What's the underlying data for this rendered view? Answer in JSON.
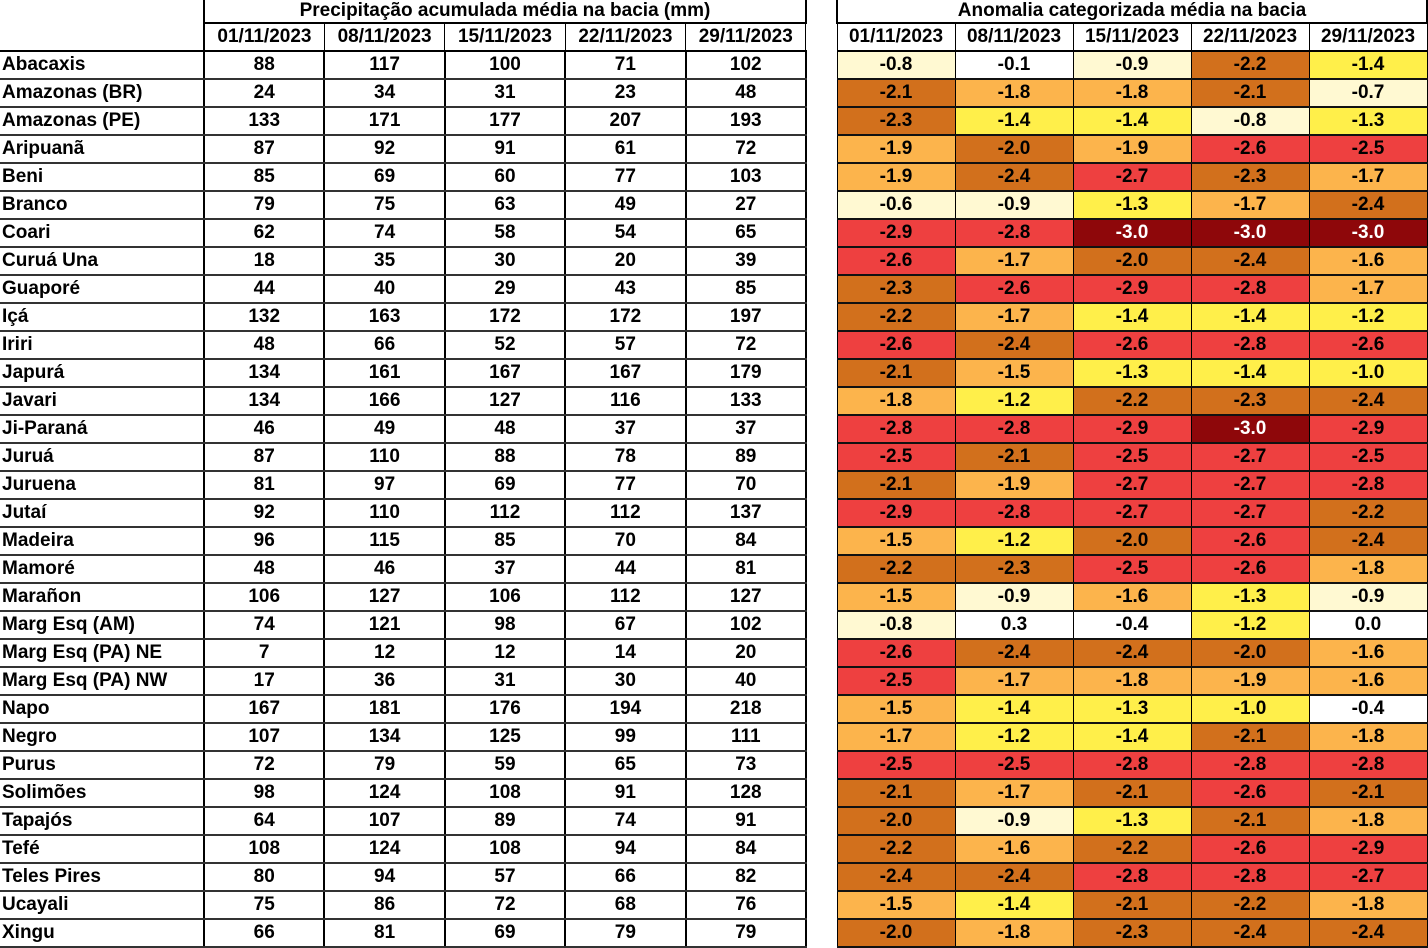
{
  "precipitation_table": {
    "title": "Precipitação acumulada média na bacia (mm)",
    "dates": [
      "01/11/2023",
      "08/11/2023",
      "15/11/2023",
      "22/11/2023",
      "29/11/2023"
    ]
  },
  "anomaly_table": {
    "title": "Anomalia categorizada média na bacia",
    "dates": [
      "01/11/2023",
      "08/11/2023",
      "15/11/2023",
      "22/11/2023",
      "29/11/2023"
    ]
  },
  "anomaly_colors": {
    "normal": "#ffffff",
    "weak": "#fff9d2",
    "moderate": "#ffef4a",
    "severe": "#fcb44c",
    "extreme": "#d2701c",
    "exceptional": "#ee4040",
    "max": "#8e070a"
  },
  "rows": [
    {
      "basin": "Abacaxis",
      "precip": [
        "88",
        "117",
        "100",
        "71",
        "102"
      ],
      "anomaly": [
        "-0.8",
        "-0.1",
        "-0.9",
        "-2.2",
        "-1.4"
      ]
    },
    {
      "basin": "Amazonas (BR)",
      "precip": [
        "24",
        "34",
        "31",
        "23",
        "48"
      ],
      "anomaly": [
        "-2.1",
        "-1.8",
        "-1.8",
        "-2.1",
        "-0.7"
      ]
    },
    {
      "basin": "Amazonas (PE)",
      "precip": [
        "133",
        "171",
        "177",
        "207",
        "193"
      ],
      "anomaly": [
        "-2.3",
        "-1.4",
        "-1.4",
        "-0.8",
        "-1.3"
      ]
    },
    {
      "basin": "Aripuanã",
      "precip": [
        "87",
        "92",
        "91",
        "61",
        "72"
      ],
      "anomaly": [
        "-1.9",
        "-2.0",
        "-1.9",
        "-2.6",
        "-2.5"
      ]
    },
    {
      "basin": "Beni",
      "precip": [
        "85",
        "69",
        "60",
        "77",
        "103"
      ],
      "anomaly": [
        "-1.9",
        "-2.4",
        "-2.7",
        "-2.3",
        "-1.7"
      ]
    },
    {
      "basin": "Branco",
      "precip": [
        "79",
        "75",
        "63",
        "49",
        "27"
      ],
      "anomaly": [
        "-0.6",
        "-0.9",
        "-1.3",
        "-1.7",
        "-2.4"
      ]
    },
    {
      "basin": "Coari",
      "precip": [
        "62",
        "74",
        "58",
        "54",
        "65"
      ],
      "anomaly": [
        "-2.9",
        "-2.8",
        "-3.0",
        "-3.0",
        "-3.0"
      ]
    },
    {
      "basin": "Curuá Una",
      "precip": [
        "18",
        "35",
        "30",
        "20",
        "39"
      ],
      "anomaly": [
        "-2.6",
        "-1.7",
        "-2.0",
        "-2.4",
        "-1.6"
      ]
    },
    {
      "basin": "Guaporé",
      "precip": [
        "44",
        "40",
        "29",
        "43",
        "85"
      ],
      "anomaly": [
        "-2.3",
        "-2.6",
        "-2.9",
        "-2.8",
        "-1.7"
      ]
    },
    {
      "basin": "Içá",
      "precip": [
        "132",
        "163",
        "172",
        "172",
        "197"
      ],
      "anomaly": [
        "-2.2",
        "-1.7",
        "-1.4",
        "-1.4",
        "-1.2"
      ]
    },
    {
      "basin": "Iriri",
      "precip": [
        "48",
        "66",
        "52",
        "57",
        "72"
      ],
      "anomaly": [
        "-2.6",
        "-2.4",
        "-2.6",
        "-2.8",
        "-2.6"
      ]
    },
    {
      "basin": "Japurá",
      "precip": [
        "134",
        "161",
        "167",
        "167",
        "179"
      ],
      "anomaly": [
        "-2.1",
        "-1.5",
        "-1.3",
        "-1.4",
        "-1.0"
      ]
    },
    {
      "basin": "Javari",
      "precip": [
        "134",
        "166",
        "127",
        "116",
        "133"
      ],
      "anomaly": [
        "-1.8",
        "-1.2",
        "-2.2",
        "-2.3",
        "-2.4"
      ]
    },
    {
      "basin": "Ji-Paraná",
      "precip": [
        "46",
        "49",
        "48",
        "37",
        "37"
      ],
      "anomaly": [
        "-2.8",
        "-2.8",
        "-2.9",
        "-3.0",
        "-2.9"
      ]
    },
    {
      "basin": "Juruá",
      "precip": [
        "87",
        "110",
        "88",
        "78",
        "89"
      ],
      "anomaly": [
        "-2.5",
        "-2.1",
        "-2.5",
        "-2.7",
        "-2.5"
      ]
    },
    {
      "basin": "Juruena",
      "precip": [
        "81",
        "97",
        "69",
        "77",
        "70"
      ],
      "anomaly": [
        "-2.1",
        "-1.9",
        "-2.7",
        "-2.7",
        "-2.8"
      ]
    },
    {
      "basin": "Jutaí",
      "precip": [
        "92",
        "110",
        "112",
        "112",
        "137"
      ],
      "anomaly": [
        "-2.9",
        "-2.8",
        "-2.7",
        "-2.7",
        "-2.2"
      ]
    },
    {
      "basin": "Madeira",
      "precip": [
        "96",
        "115",
        "85",
        "70",
        "84"
      ],
      "anomaly": [
        "-1.5",
        "-1.2",
        "-2.0",
        "-2.6",
        "-2.4"
      ]
    },
    {
      "basin": "Mamoré",
      "precip": [
        "48",
        "46",
        "37",
        "44",
        "81"
      ],
      "anomaly": [
        "-2.2",
        "-2.3",
        "-2.5",
        "-2.6",
        "-1.8"
      ]
    },
    {
      "basin": "Marañon",
      "precip": [
        "106",
        "127",
        "106",
        "112",
        "127"
      ],
      "anomaly": [
        "-1.5",
        "-0.9",
        "-1.6",
        "-1.3",
        "-0.9"
      ]
    },
    {
      "basin": "Marg Esq (AM)",
      "precip": [
        "74",
        "121",
        "98",
        "67",
        "102"
      ],
      "anomaly": [
        "-0.8",
        "0.3",
        "-0.4",
        "-1.2",
        "0.0"
      ]
    },
    {
      "basin": "Marg Esq (PA) NE",
      "precip": [
        "7",
        "12",
        "12",
        "14",
        "20"
      ],
      "anomaly": [
        "-2.6",
        "-2.4",
        "-2.4",
        "-2.0",
        "-1.6"
      ]
    },
    {
      "basin": "Marg Esq (PA) NW",
      "precip": [
        "17",
        "36",
        "31",
        "30",
        "40"
      ],
      "anomaly": [
        "-2.5",
        "-1.7",
        "-1.8",
        "-1.9",
        "-1.6"
      ]
    },
    {
      "basin": "Napo",
      "precip": [
        "167",
        "181",
        "176",
        "194",
        "218"
      ],
      "anomaly": [
        "-1.5",
        "-1.4",
        "-1.3",
        "-1.0",
        "-0.4"
      ]
    },
    {
      "basin": "Negro",
      "precip": [
        "107",
        "134",
        "125",
        "99",
        "111"
      ],
      "anomaly": [
        "-1.7",
        "-1.2",
        "-1.4",
        "-2.1",
        "-1.8"
      ]
    },
    {
      "basin": "Purus",
      "precip": [
        "72",
        "79",
        "59",
        "65",
        "73"
      ],
      "anomaly": [
        "-2.5",
        "-2.5",
        "-2.8",
        "-2.8",
        "-2.8"
      ]
    },
    {
      "basin": "Solimões",
      "precip": [
        "98",
        "124",
        "108",
        "91",
        "128"
      ],
      "anomaly": [
        "-2.1",
        "-1.7",
        "-2.1",
        "-2.6",
        "-2.1"
      ]
    },
    {
      "basin": "Tapajós",
      "precip": [
        "64",
        "107",
        "89",
        "74",
        "91"
      ],
      "anomaly": [
        "-2.0",
        "-0.9",
        "-1.3",
        "-2.1",
        "-1.8"
      ]
    },
    {
      "basin": "Tefé",
      "precip": [
        "108",
        "124",
        "108",
        "94",
        "84"
      ],
      "anomaly": [
        "-2.2",
        "-1.6",
        "-2.2",
        "-2.6",
        "-2.9"
      ]
    },
    {
      "basin": "Teles Pires",
      "precip": [
        "80",
        "94",
        "57",
        "66",
        "82"
      ],
      "anomaly": [
        "-2.4",
        "-2.4",
        "-2.8",
        "-2.8",
        "-2.7"
      ]
    },
    {
      "basin": "Ucayali",
      "precip": [
        "75",
        "86",
        "72",
        "68",
        "76"
      ],
      "anomaly": [
        "-1.5",
        "-1.4",
        "-2.1",
        "-2.2",
        "-1.8"
      ]
    },
    {
      "basin": "Xingu",
      "precip": [
        "66",
        "81",
        "69",
        "79",
        "79"
      ],
      "anomaly": [
        "-2.0",
        "-1.8",
        "-2.3",
        "-2.4",
        "-2.4"
      ]
    }
  ]
}
